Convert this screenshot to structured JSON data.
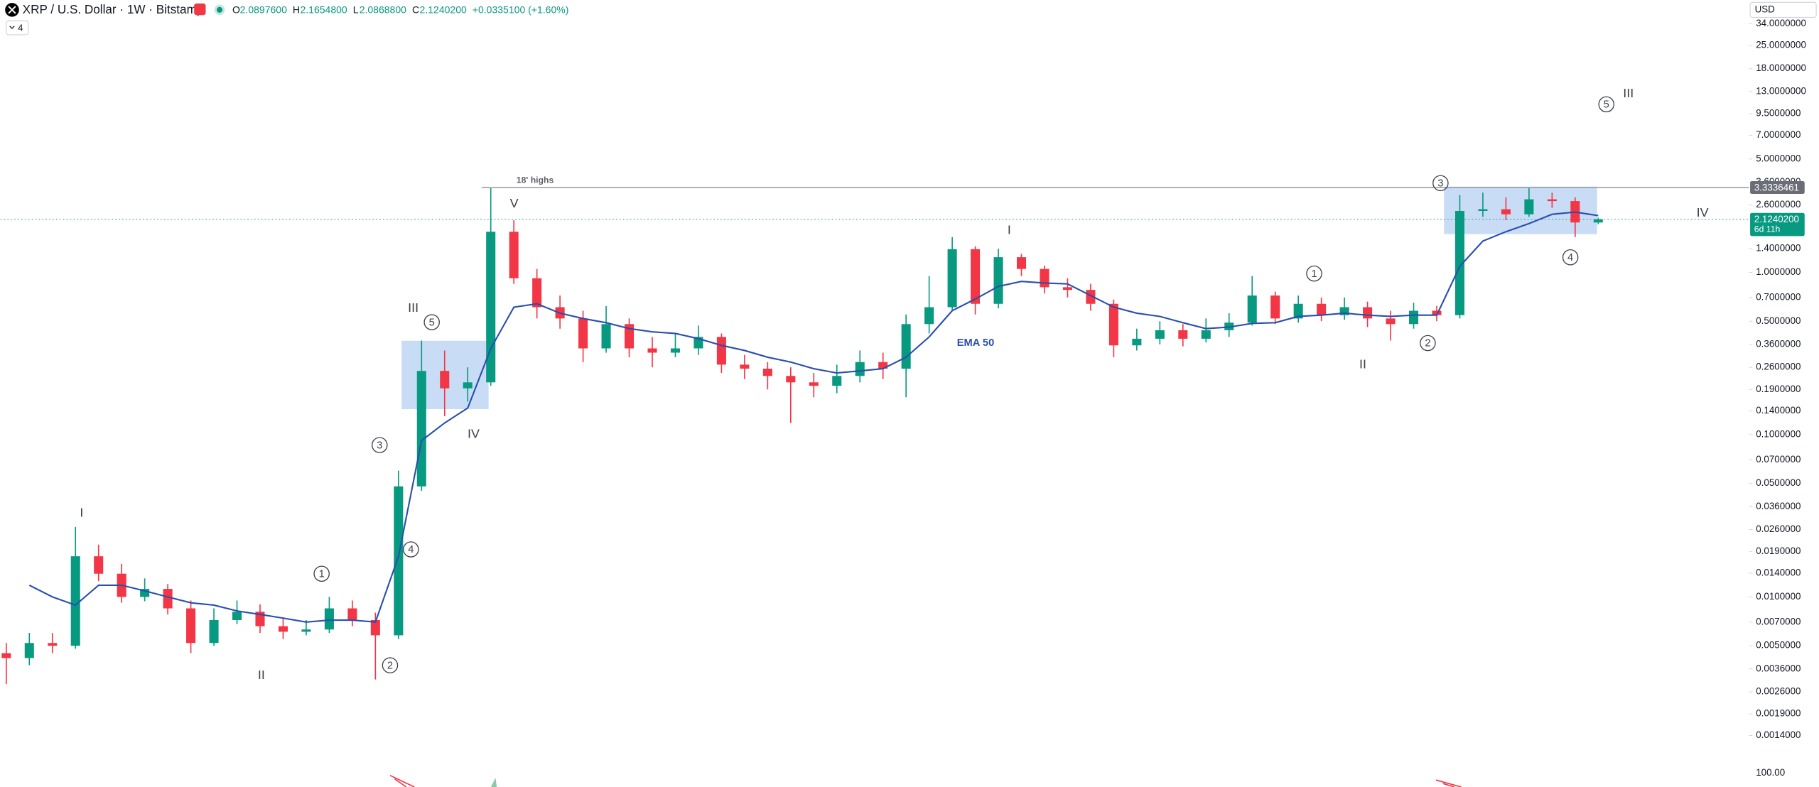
{
  "header": {
    "symbol": "XRP / U.S. Dollar · 1W · Bitstamp",
    "open_label": "O",
    "open": "2.0897600",
    "high_label": "H",
    "high": "2.1654800",
    "low_label": "L",
    "low": "2.0868800",
    "close_label": "C",
    "close": "2.1240200",
    "change": "+0.0335100 (+1.60%)",
    "indicator_count": "4",
    "currency": "USD"
  },
  "lower_pane": {
    "scale_label": "100.00"
  },
  "chart_data": {
    "type": "candlestick",
    "log_scale": true,
    "grid": false,
    "up_color": "#089981",
    "down_color": "#f23645",
    "open": [
      0.0045,
      0.0042,
      0.0052,
      0.005,
      0.0178,
      0.0139,
      0.01,
      0.0112,
      0.0085,
      0.0052,
      0.0072,
      0.0081,
      0.0066,
      0.0061,
      0.0063,
      0.0085,
      0.0072,
      0.0058,
      0.048,
      0.247,
      0.193,
      0.21,
      1.78,
      0.92,
      0.61,
      0.52,
      0.34,
      0.48,
      0.34,
      0.32,
      0.34,
      0.4,
      0.27,
      0.255,
      0.23,
      0.21,
      0.2,
      0.23,
      0.28,
      0.255,
      0.48,
      0.61,
      1.39,
      0.64,
      1.24,
      1.05,
      0.81,
      0.78,
      0.64,
      0.355,
      0.39,
      0.44,
      0.39,
      0.44,
      0.49,
      0.72,
      0.52,
      0.64,
      0.545,
      0.61,
      0.52,
      0.48,
      0.58,
      0.545,
      2.39,
      2.45,
      2.28,
      2.82,
      2.75,
      2.03
    ],
    "high": [
      0.0052,
      0.006,
      0.006,
      0.027,
      0.021,
      0.016,
      0.013,
      0.012,
      0.0095,
      0.0085,
      0.0095,
      0.009,
      0.0075,
      0.0072,
      0.01,
      0.0095,
      0.008,
      0.06,
      0.38,
      0.33,
      0.26,
      3.3,
      2.1,
      1.05,
      0.72,
      0.58,
      0.62,
      0.52,
      0.4,
      0.42,
      0.47,
      0.42,
      0.31,
      0.28,
      0.26,
      0.24,
      0.27,
      0.33,
      0.32,
      0.55,
      0.95,
      1.65,
      1.45,
      1.4,
      1.3,
      1.1,
      0.92,
      0.85,
      0.68,
      0.45,
      0.5,
      0.48,
      0.52,
      0.56,
      0.95,
      0.76,
      0.72,
      0.7,
      0.7,
      0.66,
      0.58,
      0.65,
      0.62,
      3.0,
      3.1,
      2.9,
      3.3,
      3.1,
      2.9,
      2.17
    ],
    "low": [
      0.0029,
      0.0038,
      0.0045,
      0.0048,
      0.0125,
      0.0092,
      0.0094,
      0.0078,
      0.0045,
      0.005,
      0.0068,
      0.006,
      0.0055,
      0.0058,
      0.006,
      0.0066,
      0.0031,
      0.0055,
      0.045,
      0.13,
      0.16,
      0.2,
      0.85,
      0.52,
      0.45,
      0.28,
      0.32,
      0.3,
      0.26,
      0.3,
      0.31,
      0.24,
      0.22,
      0.19,
      0.118,
      0.17,
      0.18,
      0.21,
      0.22,
      0.17,
      0.42,
      0.58,
      0.55,
      0.6,
      0.95,
      0.74,
      0.7,
      0.58,
      0.3,
      0.33,
      0.36,
      0.35,
      0.37,
      0.4,
      0.47,
      0.48,
      0.49,
      0.5,
      0.51,
      0.46,
      0.38,
      0.45,
      0.5,
      0.52,
      2.2,
      2.1,
      2.2,
      2.5,
      1.65,
      1.98
    ],
    "close": [
      0.0042,
      0.0052,
      0.005,
      0.0178,
      0.0139,
      0.01,
      0.0112,
      0.0085,
      0.0052,
      0.0072,
      0.0081,
      0.0066,
      0.0061,
      0.0063,
      0.0085,
      0.0072,
      0.0058,
      0.048,
      0.247,
      0.193,
      0.21,
      1.78,
      0.92,
      0.61,
      0.52,
      0.34,
      0.48,
      0.34,
      0.32,
      0.34,
      0.4,
      0.27,
      0.255,
      0.23,
      0.21,
      0.2,
      0.23,
      0.28,
      0.255,
      0.48,
      0.61,
      1.39,
      0.64,
      1.24,
      1.05,
      0.81,
      0.78,
      0.64,
      0.355,
      0.39,
      0.44,
      0.39,
      0.44,
      0.49,
      0.72,
      0.52,
      0.64,
      0.545,
      0.61,
      0.52,
      0.48,
      0.58,
      0.545,
      2.39,
      2.45,
      2.28,
      2.82,
      2.75,
      2.03,
      2.124
    ],
    "series": [
      {
        "name": "EMA 50",
        "color": "#2a4fae",
        "values": [
          null,
          0.0118,
          0.01,
          0.0089,
          0.0118,
          0.0118,
          0.0109,
          0.01,
          0.0092,
          0.0089,
          0.0082,
          0.0078,
          0.0074,
          0.007,
          0.0072,
          0.0072,
          0.007,
          0.0178,
          0.092,
          0.118,
          0.146,
          0.34,
          0.61,
          0.64,
          0.56,
          0.52,
          0.49,
          0.45,
          0.43,
          0.42,
          0.39,
          0.355,
          0.33,
          0.3,
          0.28,
          0.255,
          0.24,
          0.247,
          0.255,
          0.3,
          0.4,
          0.58,
          0.685,
          0.82,
          0.88,
          0.86,
          0.85,
          0.72,
          0.61,
          0.56,
          0.535,
          0.49,
          0.45,
          0.46,
          0.485,
          0.49,
          0.535,
          0.545,
          0.56,
          0.545,
          0.535,
          0.545,
          0.545,
          1.09,
          1.56,
          1.78,
          2.0,
          2.28,
          2.35,
          2.24
        ]
      }
    ],
    "ylim": [
      0.001,
      47.7
    ],
    "yticks": [
      {
        "value": 34,
        "label": "34.0000000"
      },
      {
        "value": 25,
        "label": "25.0000000"
      },
      {
        "value": 18,
        "label": "18.0000000"
      },
      {
        "value": 13,
        "label": "13.0000000"
      },
      {
        "value": 9.5,
        "label": "9.5000000"
      },
      {
        "value": 7,
        "label": "7.0000000"
      },
      {
        "value": 5,
        "label": "5.0000000"
      },
      {
        "value": 3.6,
        "label": "3.6000000"
      },
      {
        "value": 2.6,
        "label": "2.6000000"
      },
      {
        "value": 1.9,
        "label": "1.9000000"
      },
      {
        "value": 1.4,
        "label": "1.4000000"
      },
      {
        "value": 1,
        "label": "1.0000000"
      },
      {
        "value": 0.7,
        "label": "0.7000000"
      },
      {
        "value": 0.5,
        "label": "0.5000000"
      },
      {
        "value": 0.36,
        "label": "0.3600000"
      },
      {
        "value": 0.26,
        "label": "0.2600000"
      },
      {
        "value": 0.19,
        "label": "0.1900000"
      },
      {
        "value": 0.14,
        "label": "0.1400000"
      },
      {
        "value": 0.1,
        "label": "0.1000000"
      },
      {
        "value": 0.07,
        "label": "0.0700000"
      },
      {
        "value": 0.05,
        "label": "0.0500000"
      },
      {
        "value": 0.036,
        "label": "0.0360000"
      },
      {
        "value": 0.026,
        "label": "0.0260000"
      },
      {
        "value": 0.019,
        "label": "0.0190000"
      },
      {
        "value": 0.014,
        "label": "0.0140000"
      },
      {
        "value": 0.01,
        "label": "0.0100000"
      },
      {
        "value": 0.007,
        "label": "0.0070000"
      },
      {
        "value": 0.005,
        "label": "0.0050000"
      },
      {
        "value": 0.0036,
        "label": "0.0036000"
      },
      {
        "value": 0.0026,
        "label": "0.0026000"
      },
      {
        "value": 0.0019,
        "label": "0.0019000"
      },
      {
        "value": 0.0014,
        "label": "0.0014000"
      }
    ],
    "reference_line": {
      "value": 3.3336461,
      "label": "3.3336461",
      "note": "18' highs"
    },
    "last_price": {
      "value": 2.12402,
      "label": "2.1240200",
      "countdown": "6d 11h"
    },
    "annotations": [
      "I",
      "1",
      "II",
      "2",
      "3",
      "4",
      "III",
      "5",
      "IV",
      "V",
      "I",
      "1",
      "II",
      "2",
      "3",
      "4",
      "5",
      "III",
      "IV"
    ]
  }
}
